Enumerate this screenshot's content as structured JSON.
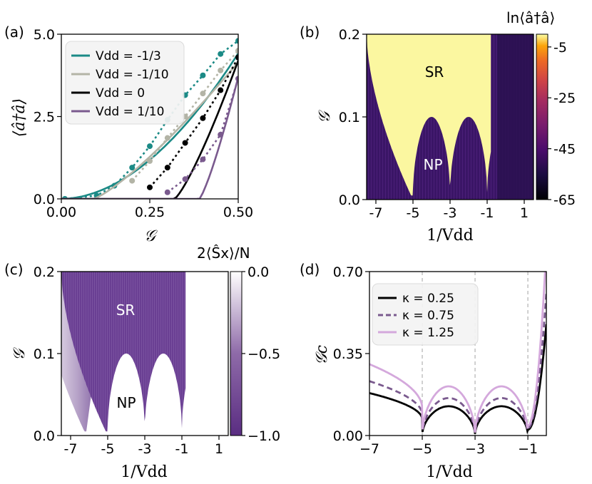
{
  "chart_data": [
    {
      "id": "a",
      "type": "line",
      "panel_label": "(a)",
      "xlabel": "𝒢",
      "ylabel": "⟨â†â⟩",
      "xlim": [
        0.0,
        0.5
      ],
      "ylim": [
        0.0,
        5.0
      ],
      "xticks": [
        0.0,
        0.25,
        0.5
      ],
      "xtick_labels": [
        "0.00",
        "0.25",
        "0.50"
      ],
      "yticks": [
        0.0,
        2.5,
        5.0
      ],
      "ytick_labels": [
        "0.0",
        "2.5",
        "5.0"
      ],
      "legend_position": "top-left",
      "series": [
        {
          "name": "V_dd = -1/3",
          "legend": "Vdd = -1/3",
          "color": "#1b8a86",
          "onset": 0.0,
          "end": 4.42,
          "dots": [
            [
              0.01,
              0.0
            ],
            [
              0.1,
              0.1
            ],
            [
              0.15,
              0.4
            ],
            [
              0.2,
              0.95
            ],
            [
              0.25,
              1.6
            ],
            [
              0.3,
              2.4
            ],
            [
              0.35,
              3.15
            ],
            [
              0.4,
              3.75
            ],
            [
              0.45,
              4.4
            ],
            [
              0.5,
              4.8
            ]
          ]
        },
        {
          "name": "V_dd = -1/10",
          "legend": "Vdd = -1/10",
          "color": "#b3b4a6",
          "onset": 0.09,
          "end": 4.15,
          "dots": [
            [
              0.2,
              0.55
            ],
            [
              0.25,
              1.15
            ],
            [
              0.3,
              1.85
            ],
            [
              0.35,
              2.5
            ],
            [
              0.4,
              3.2
            ],
            [
              0.45,
              3.9
            ],
            [
              0.5,
              4.5
            ]
          ]
        },
        {
          "name": "V_dd = 0",
          "legend": "Vdd = 0",
          "color": "#000000",
          "onset": 0.32,
          "end": 4.2,
          "dots": [
            [
              0.25,
              0.35
            ],
            [
              0.3,
              0.95
            ],
            [
              0.35,
              1.7
            ],
            [
              0.4,
              2.45
            ],
            [
              0.45,
              3.3
            ],
            [
              0.5,
              4.3
            ]
          ]
        },
        {
          "name": "V_dd = 1/10",
          "legend": "Vdd = 1/10",
          "color": "#7a5a8e",
          "onset": 0.39,
          "end": 3.7,
          "dots": [
            [
              0.3,
              0.2
            ],
            [
              0.35,
              0.6
            ],
            [
              0.4,
              1.2
            ],
            [
              0.45,
              1.95
            ],
            [
              0.5,
              3.65
            ]
          ]
        }
      ]
    },
    {
      "id": "b",
      "type": "heatmap",
      "panel_label": "(b)",
      "xlabel": "1/Vdd",
      "ylabel": "𝒢",
      "xlim": [
        -7.5,
        1.5
      ],
      "ylim": [
        0.0,
        0.2
      ],
      "xticks": [
        -7,
        -5,
        -3,
        -1,
        1
      ],
      "xtick_labels": [
        "-7",
        "-5",
        "-3",
        "-1",
        "1"
      ],
      "yticks": [
        0.0,
        0.1,
        0.2
      ],
      "ytick_labels": [
        "0.0",
        "0.1",
        "0.2"
      ],
      "colorbar_label": "ln⟨â†â⟩",
      "colorbar_range": [
        -65,
        0
      ],
      "colorbar_ticks": [
        -5,
        -25,
        -45,
        -65
      ],
      "colorbar_tick_labels": [
        "-5",
        "-25",
        "-45",
        "-65"
      ],
      "colormap": "inferno",
      "regions": [
        "SR",
        "NP"
      ],
      "critical_points_x": [
        -5,
        -3,
        -1
      ]
    },
    {
      "id": "c",
      "type": "heatmap",
      "panel_label": "(c)",
      "xlabel": "1/Vdd",
      "ylabel": "𝒢",
      "xlim": [
        -7.5,
        1.5
      ],
      "ylim": [
        0.0,
        0.2
      ],
      "xticks": [
        -7,
        -5,
        -3,
        -1,
        1
      ],
      "xtick_labels": [
        "-7",
        "-5",
        "-3",
        "-1",
        "1"
      ],
      "yticks": [
        0.0,
        0.1,
        0.2
      ],
      "ytick_labels": [
        "0.0",
        "0.1",
        "0.2"
      ],
      "colorbar_label": "2⟨Ŝx⟩/N",
      "colorbar_range": [
        -1.0,
        0.0
      ],
      "colorbar_ticks": [
        0.0,
        -0.5,
        -1.0
      ],
      "colorbar_tick_labels": [
        "0.0",
        "−0.5",
        "−1.0"
      ],
      "colormap": "purple-white",
      "regions": [
        "SR",
        "NP"
      ],
      "critical_points_x": [
        -5,
        -3,
        -1
      ]
    },
    {
      "id": "d",
      "type": "line",
      "panel_label": "(d)",
      "xlabel": "1/Vdd",
      "ylabel": "𝒢c",
      "xlim": [
        -7.0,
        -0.3
      ],
      "ylim": [
        0.0,
        0.7
      ],
      "xticks": [
        -7,
        -5,
        -3,
        -1
      ],
      "xtick_labels": [
        "−7",
        "−5",
        "−3",
        "−1"
      ],
      "yticks": [
        0.0,
        0.35,
        0.7
      ],
      "ytick_labels": [
        "0.00",
        "0.35",
        "0.70"
      ],
      "vlines_x": [
        -5,
        -3,
        -1
      ],
      "legend_position": "top-left",
      "series": [
        {
          "name": "κ = 0.25",
          "color": "#000000",
          "dash": "solid",
          "scale": 0.125
        },
        {
          "name": "κ = 0.75",
          "color": "#7a5a8e",
          "dash": "dashed",
          "scale": 0.16
        },
        {
          "name": "κ = 1.25",
          "color": "#d4a8dc",
          "dash": "solid",
          "scale": 0.21
        }
      ]
    }
  ],
  "legend_text": {
    "a": [
      "Vdd = -1/3",
      "Vdd = -1/10",
      "Vdd = 0",
      "Vdd = 1/10"
    ],
    "d": [
      "κ = 0.25",
      "κ = 0.75",
      "κ = 1.25"
    ]
  },
  "region_labels": {
    "b_sr": "SR",
    "b_np": "NP",
    "c_sr": "SR",
    "c_np": "NP"
  }
}
